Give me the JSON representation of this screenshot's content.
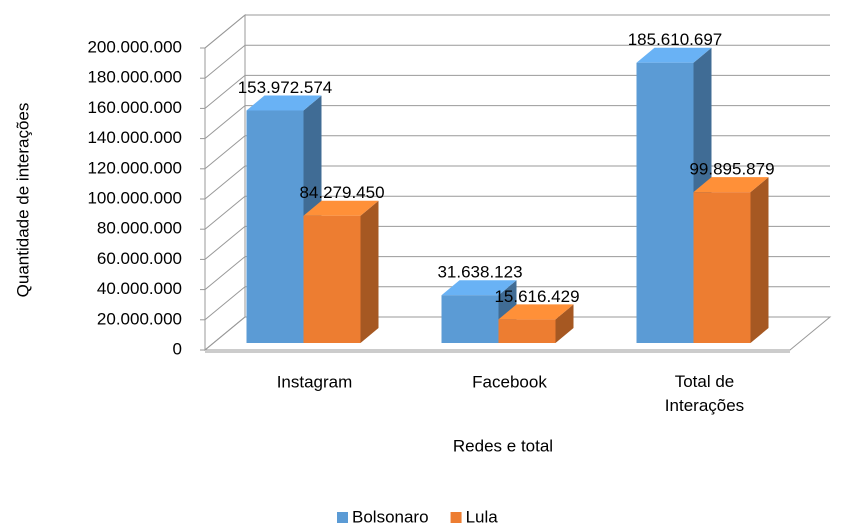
{
  "chart_data": {
    "type": "bar3d",
    "categories": [
      "Instagram",
      "Facebook",
      "Total de Interações"
    ],
    "series": [
      {
        "name": "Bolsonaro",
        "color": "#5b9bd5",
        "values": [
          153972574,
          31638123,
          185610697
        ],
        "value_labels": [
          "153.972.574",
          "31.638.123",
          "185.610.697"
        ]
      },
      {
        "name": "Lula",
        "color": "#ed7d31",
        "values": [
          84279450,
          15616429,
          99895879
        ],
        "value_labels": [
          "84.279.450",
          "15.616.429",
          "99.895.879"
        ]
      }
    ],
    "xlabel": "Redes e total",
    "ylabel": "Quantidade de interações",
    "ylim": [
      0,
      200000000
    ],
    "yticks": [
      0,
      {
        "value": 20000000,
        "label": "20.000.000"
      },
      {
        "value": 40000000,
        "label": "40.000.000"
      },
      {
        "value": 60000000,
        "label": "60.000.000"
      },
      {
        "value": 80000000,
        "label": "80.000.000"
      },
      {
        "value": 100000000,
        "label": "100.000.000"
      },
      {
        "value": 120000000,
        "label": "120.000.000"
      },
      {
        "value": 140000000,
        "label": "140.000.000"
      },
      {
        "value": 160000000,
        "label": "160.000.000"
      },
      {
        "value": 180000000,
        "label": "180.000.000"
      },
      {
        "value": 200000000,
        "label": "200.000.000"
      }
    ],
    "grid": true,
    "legend": "bottom"
  }
}
